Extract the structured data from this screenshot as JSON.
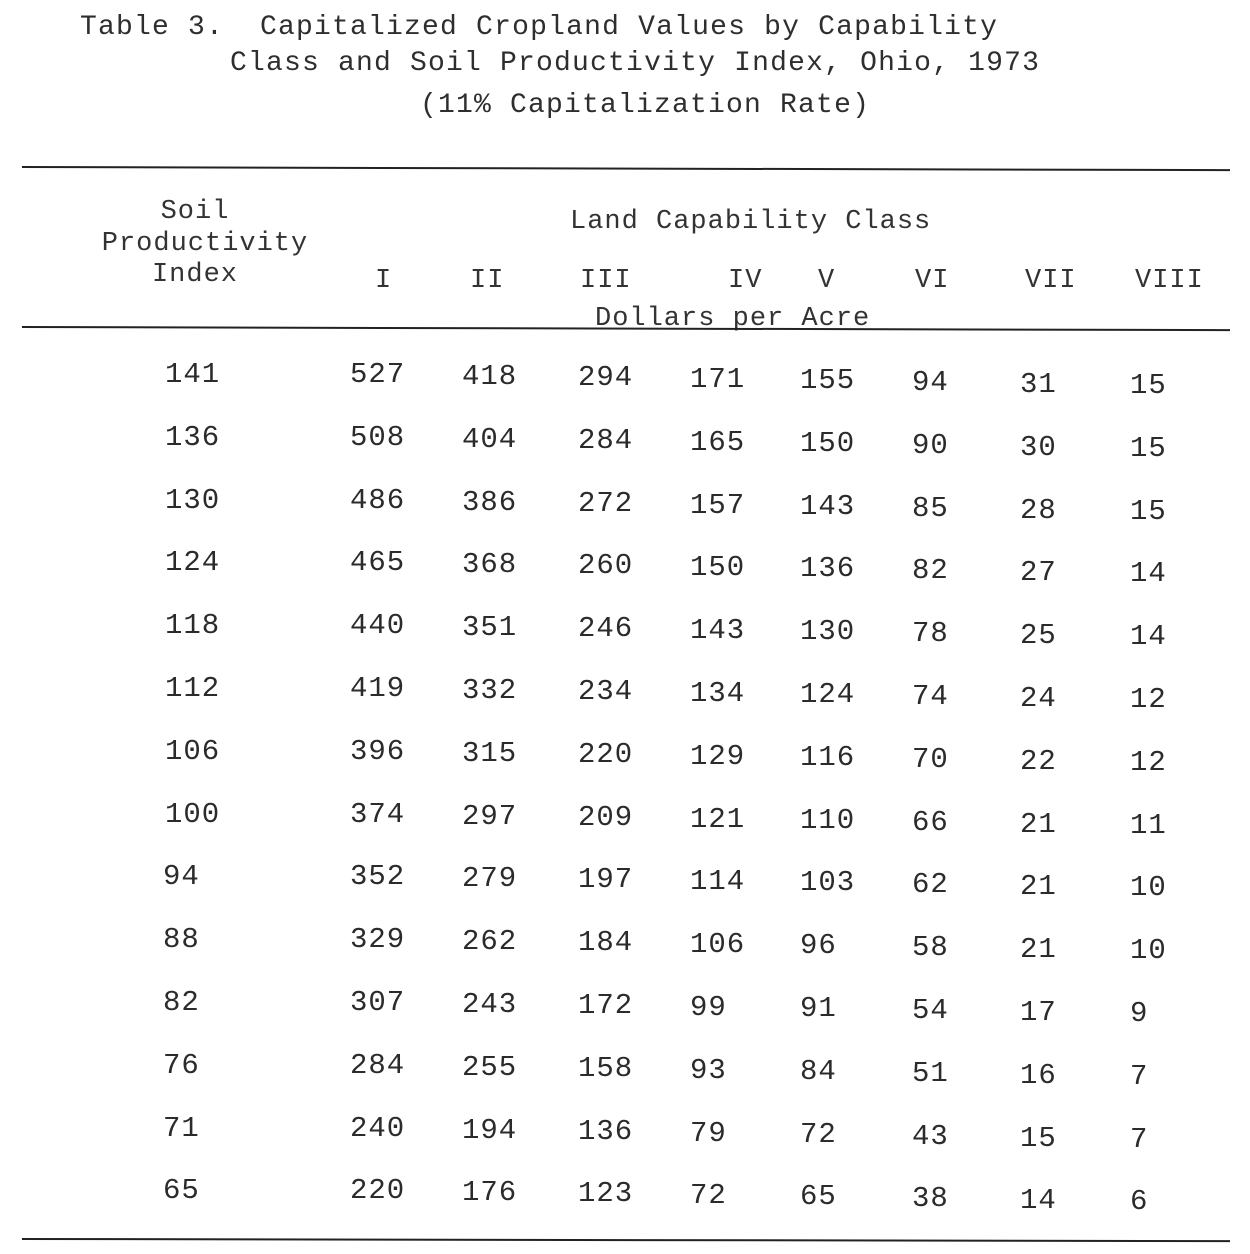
{
  "title": {
    "line1": "Table 3.  Capitalized Cropland Values by Capability",
    "line2": "Class and Soil Productivity Index, Ohio, 1973",
    "line3": "(11% Capitalization Rate)"
  },
  "header": {
    "stub_line1": "Soil",
    "stub_line2": "Productivity",
    "stub_line3": "Index",
    "group_label": "Land Capability Class",
    "units_label": "Dollars per Acre",
    "classes": [
      "I",
      "II",
      "III",
      "IV",
      "V",
      "VI",
      "VII",
      "VIII"
    ]
  },
  "rows": [
    {
      "index": "141",
      "values": [
        "527",
        "418",
        "294",
        "171",
        "155",
        "94",
        "31",
        "15"
      ]
    },
    {
      "index": "136",
      "values": [
        "508",
        "404",
        "284",
        "165",
        "150",
        "90",
        "30",
        "15"
      ]
    },
    {
      "index": "130",
      "values": [
        "486",
        "386",
        "272",
        "157",
        "143",
        "85",
        "28",
        "15"
      ]
    },
    {
      "index": "124",
      "values": [
        "465",
        "368",
        "260",
        "150",
        "136",
        "82",
        "27",
        "14"
      ]
    },
    {
      "index": "118",
      "values": [
        "440",
        "351",
        "246",
        "143",
        "130",
        "78",
        "25",
        "14"
      ]
    },
    {
      "index": "112",
      "values": [
        "419",
        "332",
        "234",
        "134",
        "124",
        "74",
        "24",
        "12"
      ]
    },
    {
      "index": "106",
      "values": [
        "396",
        "315",
        "220",
        "129",
        "116",
        "70",
        "22",
        "12"
      ]
    },
    {
      "index": "100",
      "values": [
        "374",
        "297",
        "209",
        "121",
        "110",
        "66",
        "21",
        "11"
      ]
    },
    {
      "index": "94",
      "values": [
        "352",
        "279",
        "197",
        "114",
        "103",
        "62",
        "21",
        "10"
      ]
    },
    {
      "index": "88",
      "values": [
        "329",
        "262",
        "184",
        "106",
        "96",
        "58",
        "21",
        "10"
      ]
    },
    {
      "index": "82",
      "values": [
        "307",
        "243",
        "172",
        "99",
        "91",
        "54",
        "17",
        "9"
      ]
    },
    {
      "index": "76",
      "values": [
        "284",
        "255",
        "158",
        "93",
        "84",
        "51",
        "16",
        "7"
      ]
    },
    {
      "index": "71",
      "values": [
        "240",
        "194",
        "136",
        "79",
        "72",
        "43",
        "15",
        "7"
      ]
    },
    {
      "index": "65",
      "values": [
        "220",
        "176",
        "123",
        "72",
        "65",
        "38",
        "14",
        "6"
      ]
    }
  ]
}
